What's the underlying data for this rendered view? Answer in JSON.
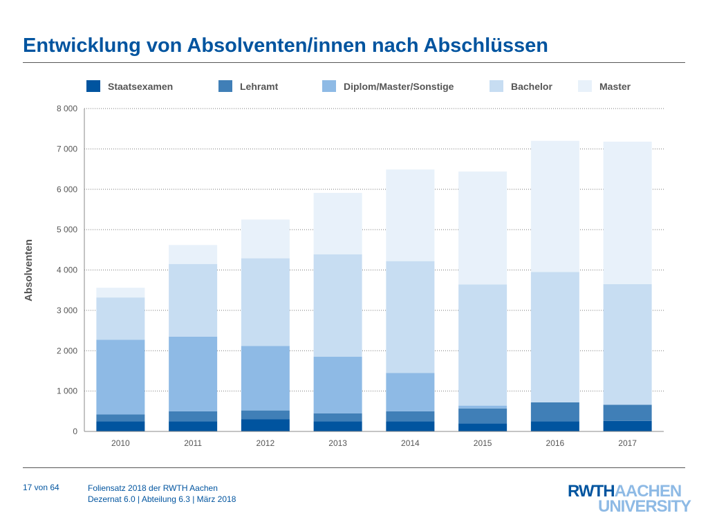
{
  "slide": {
    "title": "Entwicklung von Absolventen/innen nach Abschlüssen"
  },
  "footer": {
    "page": "17 von 64",
    "line1": "Foliensatz 2018 der RWTH Aachen",
    "line2": "Dezernat 6.0 | Abteilung 6.3 | März 2018"
  },
  "logo": {
    "part1": "RWTH",
    "part2": "AACHEN",
    "part3": "UNIVERSITY"
  },
  "chart_data": {
    "type": "bar",
    "stacked": true,
    "title": "",
    "xlabel": "",
    "ylabel": "Absolventen",
    "ylim": [
      0,
      8000
    ],
    "yticks": [
      0,
      1000,
      2000,
      3000,
      4000,
      5000,
      6000,
      7000,
      8000
    ],
    "ytick_labels": [
      "0",
      "1 000",
      "2 000",
      "3 000",
      "4 000",
      "5 000",
      "6 000",
      "7 000",
      "8 000"
    ],
    "grid": "horizontal dotted",
    "legend_position": "top",
    "categories": [
      "2010",
      "2011",
      "2012",
      "2013",
      "2014",
      "2015",
      "2016",
      "2017"
    ],
    "series": [
      {
        "name": "Staatsexamen",
        "color": "#00549f",
        "values": [
          250,
          250,
          300,
          250,
          250,
          200,
          250,
          260
        ]
      },
      {
        "name": "Lehramt",
        "color": "#407fb7",
        "values": [
          170,
          250,
          220,
          200,
          250,
          370,
          470,
          400
        ]
      },
      {
        "name": "Diplom/Master/Sonstige",
        "color": "#8ebae5",
        "values": [
          1850,
          1850,
          1600,
          1400,
          950,
          70,
          0,
          0
        ]
      },
      {
        "name": "Bachelor",
        "color": "#c7ddf2",
        "values": [
          1050,
          1800,
          2170,
          2540,
          2770,
          3000,
          3230,
          2990
        ]
      },
      {
        "name": "Master",
        "color": "#e8f1fa",
        "values": [
          240,
          470,
          960,
          1520,
          2270,
          2800,
          3250,
          3530
        ]
      }
    ]
  }
}
